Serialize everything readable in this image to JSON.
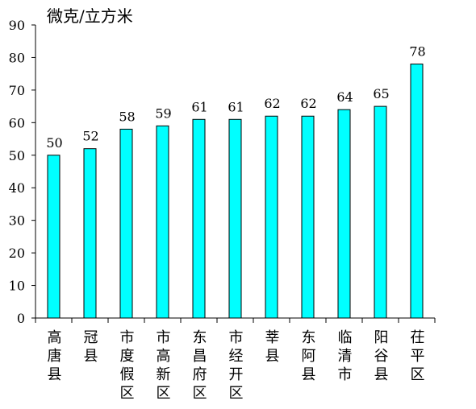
{
  "chart_data": {
    "type": "bar",
    "unit_label": "微克/立方米",
    "categories": [
      "高唐县",
      "冠县",
      "市度假区",
      "市高新区",
      "东昌府区",
      "市经开区",
      "莘县",
      "东阿县",
      "临清市",
      "阳谷县",
      "茌平区"
    ],
    "values": [
      50,
      52,
      58,
      59,
      61,
      61,
      62,
      62,
      64,
      65,
      78
    ],
    "ylim": [
      0,
      90
    ],
    "yticks": [
      0,
      10,
      20,
      30,
      40,
      50,
      60,
      70,
      80,
      90
    ],
    "bar_color": "#00FFFF",
    "bar_stroke": "#000000",
    "grid": false,
    "legend": "none"
  }
}
